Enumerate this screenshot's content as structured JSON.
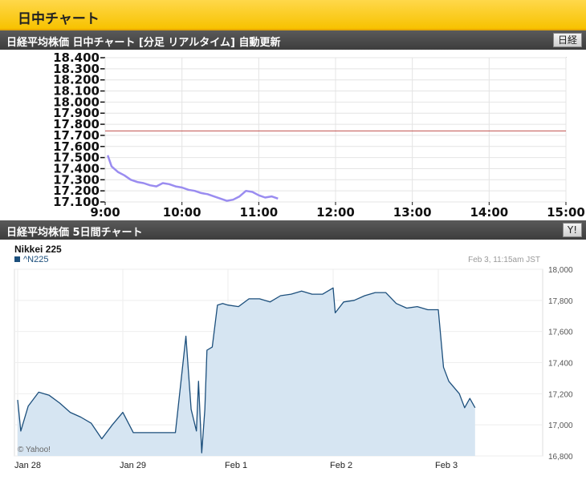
{
  "header": {
    "title": "日中チャート"
  },
  "intraday": {
    "bar_label": "日経平均株価 日中チャート [分足 リアルタイム] 自動更新",
    "button_label": "日経"
  },
  "five_day": {
    "bar_label": "日経平均株価 5日間チャート",
    "button_label": "Y!"
  },
  "colors": {
    "header_bg": "#f7c200",
    "bar_bg": "#4a4a4a",
    "intraday_line": "#9a8cf0",
    "reference_line": "#c0504d",
    "five_day_line": "#1c4f7c",
    "five_day_fill": "#d6e5f2"
  },
  "chart_data": [
    {
      "type": "line",
      "title": "",
      "y_ticks": [
        "18.400",
        "18.300",
        "18.200",
        "18.100",
        "18.000",
        "17.900",
        "17.800",
        "17.700",
        "17.600",
        "17.500",
        "17.400",
        "17.300",
        "17.200",
        "17.100"
      ],
      "x_ticks": [
        "9:00",
        "10:00",
        "11:00",
        "12:00",
        "13:00",
        "14:00",
        "15:00"
      ],
      "ylim": [
        17100,
        18400
      ],
      "grid": true,
      "reference_value": 17740,
      "x": [
        "9:02",
        "9:05",
        "9:10",
        "9:15",
        "9:20",
        "9:25",
        "9:30",
        "9:35",
        "9:40",
        "9:45",
        "9:50",
        "9:55",
        "10:00",
        "10:05",
        "10:10",
        "10:15",
        "10:20",
        "10:25",
        "10:30",
        "10:35",
        "10:40",
        "10:45",
        "10:50",
        "10:55",
        "11:00",
        "11:05",
        "11:10",
        "11:15"
      ],
      "values": [
        17520,
        17420,
        17370,
        17340,
        17300,
        17280,
        17270,
        17250,
        17240,
        17270,
        17260,
        17240,
        17230,
        17210,
        17200,
        17180,
        17170,
        17150,
        17130,
        17110,
        17120,
        17150,
        17200,
        17190,
        17160,
        17140,
        17150,
        17130
      ]
    },
    {
      "type": "area",
      "title": "Nikkei 225",
      "legend": [
        "^N225"
      ],
      "timestamp": "Feb 3, 11:15am JST",
      "credit": "© Yahoo!",
      "x_ticks": [
        "Jan 28",
        "Jan 29",
        "Feb 1",
        "Feb 2",
        "Feb 3"
      ],
      "y_ticks": [
        "18,000",
        "17,800",
        "17,600",
        "17,400",
        "17,200",
        "17,000",
        "16,800"
      ],
      "ylim": [
        16800,
        18000
      ],
      "grid": true,
      "series": [
        {
          "name": "^N225",
          "x": [
            0.0,
            0.03,
            0.1,
            0.2,
            0.3,
            0.4,
            0.5,
            0.6,
            0.7,
            0.8,
            0.9,
            1.0,
            1.1,
            1.2,
            1.3,
            1.4,
            1.5,
            1.6,
            1.65,
            1.7,
            1.72,
            1.75,
            1.78,
            1.8,
            1.85,
            1.9,
            1.95,
            2.0,
            2.1,
            2.2,
            2.3,
            2.4,
            2.5,
            2.6,
            2.7,
            2.8,
            2.9,
            3.0,
            3.02,
            3.1,
            3.2,
            3.3,
            3.4,
            3.5,
            3.6,
            3.7,
            3.8,
            3.9,
            4.0,
            4.05,
            4.1,
            4.2,
            4.25,
            4.3,
            4.35
          ],
          "values": [
            17160,
            16960,
            17120,
            17210,
            17190,
            17140,
            17080,
            17050,
            17010,
            16910,
            17000,
            17080,
            16950,
            16950,
            16950,
            16950,
            16950,
            17570,
            17100,
            16960,
            17280,
            16820,
            17100,
            17480,
            17500,
            17770,
            17780,
            17770,
            17760,
            17810,
            17810,
            17790,
            17830,
            17840,
            17860,
            17840,
            17840,
            17880,
            17720,
            17790,
            17800,
            17830,
            17850,
            17850,
            17780,
            17750,
            17760,
            17740,
            17740,
            17370,
            17280,
            17200,
            17110,
            17170,
            17110
          ]
        }
      ]
    }
  ]
}
